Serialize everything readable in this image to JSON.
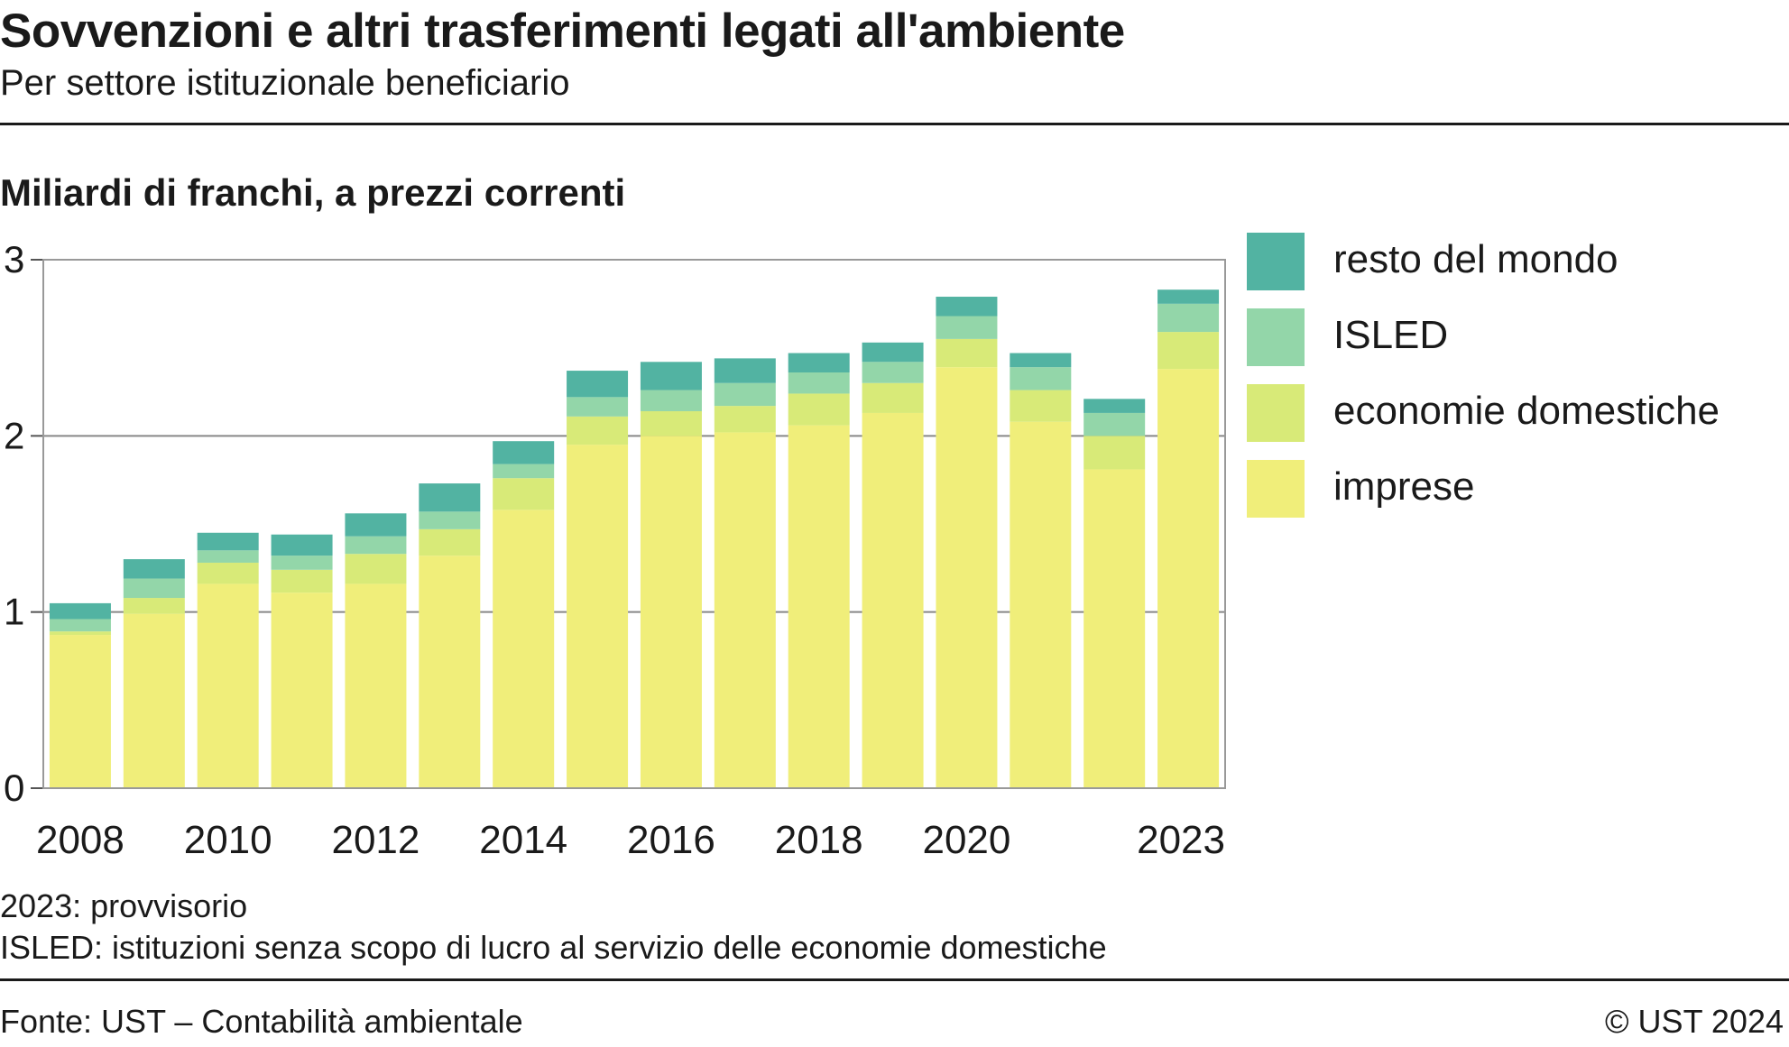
{
  "header": {
    "title": "Sovvenzioni e altri trasferimenti legati all'ambiente",
    "subtitle": "Per settore istituzionale beneficiario"
  },
  "unit_label": "Miliardi di franchi, a prezzi correnti",
  "notes": {
    "provisional": "2023: provvisorio",
    "isled": "ISLED: istituzioni senza scopo di lucro al servizio delle economie domestiche"
  },
  "footer": {
    "source": "Fonte: UST – Contabilità ambientale",
    "copyright": "© UST 2024"
  },
  "legend": [
    {
      "label": "resto del mondo",
      "color": "#52b3a2"
    },
    {
      "label": "ISLED",
      "color": "#93d6a9"
    },
    {
      "label": "economie domestiche",
      "color": "#d8ea78"
    },
    {
      "label": "imprese",
      "color": "#f0ee7a"
    }
  ],
  "chart_data": {
    "type": "bar",
    "stacked": true,
    "categories": [
      "2008",
      "2009",
      "2010",
      "2011",
      "2012",
      "2013",
      "2014",
      "2015",
      "2016",
      "2017",
      "2018",
      "2019",
      "2020",
      "2021",
      "2022",
      "2023"
    ],
    "x_tick_labels": [
      "2008",
      "",
      "2010",
      "",
      "2012",
      "",
      "2014",
      "",
      "2016",
      "",
      "2018",
      "",
      "2020",
      "",
      "",
      "2023"
    ],
    "ylim": [
      0,
      3
    ],
    "yticks": [
      0,
      1,
      2,
      3
    ],
    "grid": true,
    "legend_position": "right",
    "series": [
      {
        "name": "imprese",
        "color": "#f0ee7a",
        "values": [
          0.87,
          0.99,
          1.16,
          1.11,
          1.16,
          1.32,
          1.58,
          1.95,
          2.0,
          2.02,
          2.06,
          2.13,
          2.39,
          2.08,
          1.81,
          2.38
        ]
      },
      {
        "name": "economie domestiche",
        "color": "#d8ea78",
        "values": [
          0.02,
          0.09,
          0.12,
          0.13,
          0.17,
          0.15,
          0.18,
          0.16,
          0.14,
          0.15,
          0.18,
          0.17,
          0.16,
          0.18,
          0.19,
          0.21
        ]
      },
      {
        "name": "ISLED",
        "color": "#93d6a9",
        "values": [
          0.07,
          0.11,
          0.07,
          0.08,
          0.1,
          0.1,
          0.08,
          0.11,
          0.12,
          0.13,
          0.12,
          0.12,
          0.13,
          0.13,
          0.13,
          0.16
        ]
      },
      {
        "name": "resto del mondo",
        "color": "#52b3a2",
        "values": [
          0.09,
          0.11,
          0.1,
          0.12,
          0.13,
          0.16,
          0.13,
          0.15,
          0.16,
          0.14,
          0.11,
          0.11,
          0.11,
          0.08,
          0.08,
          0.08
        ]
      }
    ]
  }
}
